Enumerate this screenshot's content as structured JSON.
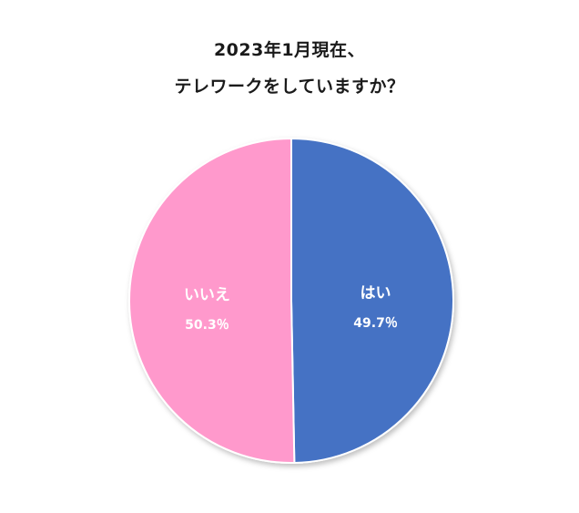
{
  "chart_data": {
    "type": "pie",
    "title_line1": "2023年1月現在、",
    "title_line2": "テレワークをしていますか？",
    "slices": [
      {
        "label": "はい",
        "value": 49.7,
        "value_label": "49.7％",
        "color": "#4472c4"
      },
      {
        "label": "いいえ",
        "value": 50.3,
        "value_label": "50.3％",
        "color": "#ff99cc"
      }
    ],
    "start_angle": "12 o'clock",
    "direction": "clockwise",
    "legend": "none"
  }
}
